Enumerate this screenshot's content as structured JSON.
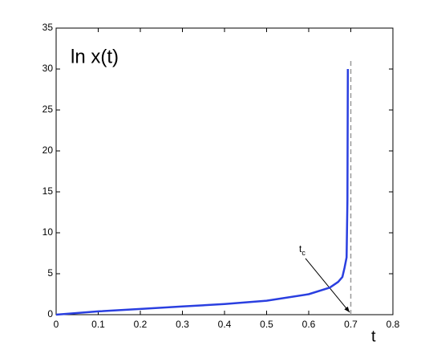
{
  "chart_data": {
    "type": "line",
    "ylabel": "ln x(t)",
    "xlabel": "t",
    "annotation": {
      "text": "t",
      "subscript": "c"
    },
    "x": [
      0,
      0.1,
      0.2,
      0.3,
      0.4,
      0.5,
      0.6,
      0.65,
      0.67,
      0.68,
      0.685,
      0.69,
      0.692,
      0.693
    ],
    "series": [
      {
        "color": "#2a3fe0",
        "values": [
          0,
          0.4,
          0.7,
          1.0,
          1.3,
          1.7,
          2.5,
          3.3,
          4.0,
          4.6,
          5.7,
          7,
          14,
          30
        ]
      }
    ],
    "vline": {
      "x": 0.7,
      "y": [
        0,
        31
      ],
      "color": "#999999"
    },
    "xlim": [
      0,
      0.8
    ],
    "ylim": [
      0,
      35
    ],
    "xticks": [
      0,
      0.1,
      0.2,
      0.3,
      0.4,
      0.5,
      0.6,
      0.7,
      0.8
    ],
    "yticks": [
      0,
      5,
      10,
      15,
      20,
      25,
      30,
      35
    ]
  }
}
